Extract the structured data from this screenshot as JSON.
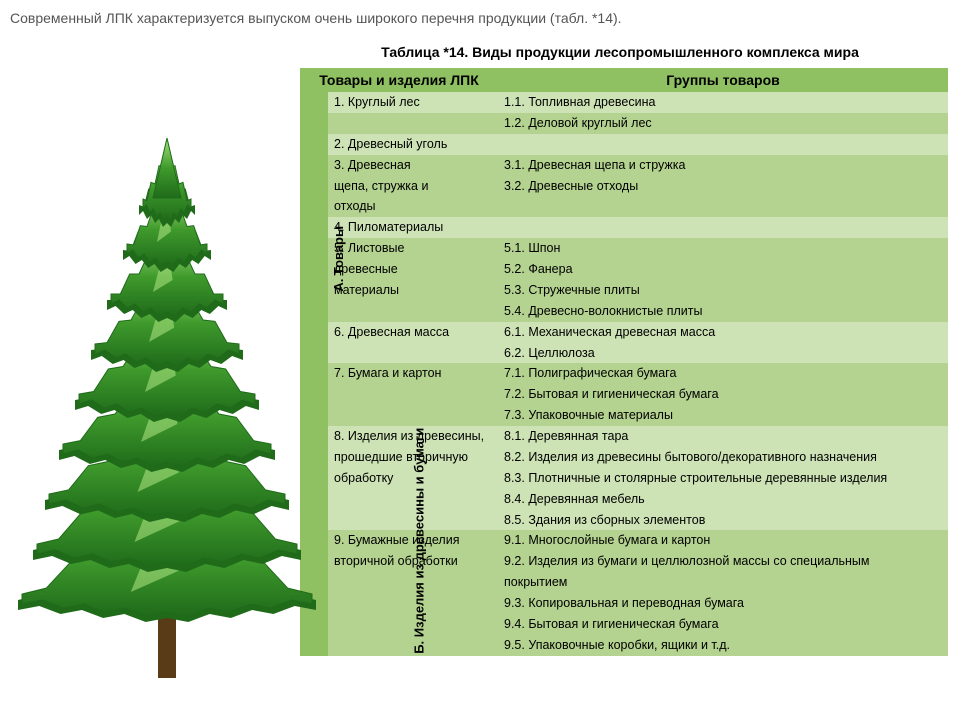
{
  "intro_text": "Современный ЛПК характеризуется выпуском очень широкого перечня продукции (табл. *14).",
  "caption": "Таблица *14. Виды продукции лесопромышленного комплекса мира",
  "headers": {
    "left": "Товары и изделия ЛПК",
    "right": "Группы товаров"
  },
  "categories": {
    "A": "А. Товары",
    "B": "Б. Изделия из древесины и бумаги"
  },
  "colors": {
    "header_bg": "#8fc162",
    "band_light": "#cde3b5",
    "band_dark": "#b4d290",
    "cat_bg": "#8fc162",
    "text": "#111111"
  },
  "rows": [
    {
      "cat": "A",
      "alt": 0,
      "left": "1. Круглый лес",
      "right": "1.1. Топливная древесина"
    },
    {
      "cat": "A",
      "alt": 1,
      "left": "",
      "right": "1.2. Деловой круглый лес"
    },
    {
      "cat": "A",
      "alt": 0,
      "left": "2. Древесный уголь",
      "right": ""
    },
    {
      "cat": "A",
      "alt": 1,
      "left": "3. Древесная",
      "right": "3.1. Древесная щепа и стружка"
    },
    {
      "cat": "A",
      "alt": 1,
      "left": "щепа, стружка и",
      "right": "3.2. Древесные отходы"
    },
    {
      "cat": "A",
      "alt": 1,
      "left": "отходы",
      "right": ""
    },
    {
      "cat": "A",
      "alt": 0,
      "left": "4. Пиломатериалы",
      "right": ""
    },
    {
      "cat": "A",
      "alt": 1,
      "left": "5. Листовые",
      "right": "5.1. Шпон"
    },
    {
      "cat": "A",
      "alt": 1,
      "left": "древесные",
      "right": "5.2. Фанера"
    },
    {
      "cat": "A",
      "alt": 1,
      "left": "материалы",
      "right": "5.3. Стружечные плиты"
    },
    {
      "cat": "A",
      "alt": 1,
      "left": "",
      "right": "5.4. Древесно-волокнистые плиты"
    },
    {
      "cat": "A",
      "alt": 0,
      "left": "6. Древесная масса",
      "right": "6.1. Механическая древесная масса"
    },
    {
      "cat": "A",
      "alt": 0,
      "left": "",
      "right": "6.2. Целлюлоза"
    },
    {
      "cat": "A",
      "alt": 1,
      "left": "7. Бумага и картон",
      "right": "7.1. Полиграфическая бумага"
    },
    {
      "cat": "A",
      "alt": 1,
      "left": "",
      "right": "7.2. Бытовая и гигиеническая бумага"
    },
    {
      "cat": "A",
      "alt": 1,
      "left": "",
      "right": "7.3. Упаковочные материалы"
    },
    {
      "cat": "B",
      "alt": 0,
      "left": "8. Изделия из древесины,",
      "right": "8.1. Деревянная тара"
    },
    {
      "cat": "B",
      "alt": 0,
      "left": "прошедшие вторичную",
      "right": "8.2. Изделия из древесины бытового/декоративного назначения"
    },
    {
      "cat": "B",
      "alt": 0,
      "left": "обработку",
      "right": "8.3. Плотничные и столярные строительные деревянные изделия"
    },
    {
      "cat": "B",
      "alt": 0,
      "left": "",
      "right": "8.4. Деревянная мебель"
    },
    {
      "cat": "B",
      "alt": 0,
      "left": "",
      "right": "8.5. Здания из сборных элементов"
    },
    {
      "cat": "B",
      "alt": 1,
      "left": "9. Бумажные изделия",
      "right": "9.1. Многослойные бумага и картон"
    },
    {
      "cat": "B",
      "alt": 1,
      "left": "вторичной обработки",
      "right": "9.2. Изделия из бумаги и целлюлозной массы со специальным"
    },
    {
      "cat": "B",
      "alt": 1,
      "left": "",
      "right": "покрытием"
    },
    {
      "cat": "B",
      "alt": 1,
      "left": "",
      "right": "9.3. Копировальная и переводная бумага"
    },
    {
      "cat": "B",
      "alt": 1,
      "left": "",
      "right": "9.4. Бытовая и гигиеническая бумага"
    },
    {
      "cat": "B",
      "alt": 1,
      "left": "",
      "right": "9.5. Упаковочные коробки, ящики и т.д."
    }
  ],
  "tree": {
    "dark": "#1f6b1a",
    "mid": "#3f9a2c",
    "light": "#6fc24a",
    "hi": "#a6e07d",
    "trunk": "#5a3b18"
  }
}
